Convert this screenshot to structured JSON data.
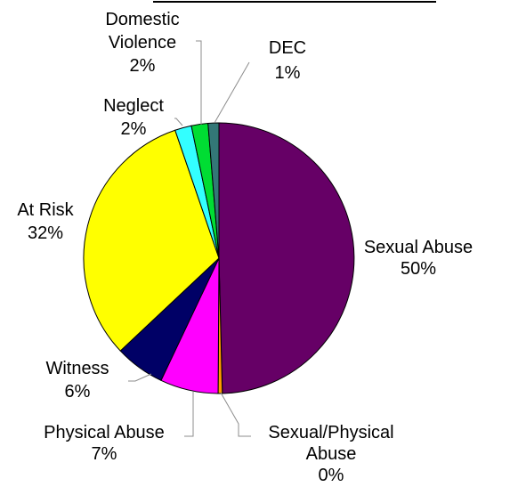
{
  "chart_data": {
    "type": "pie",
    "title": "",
    "start_angle_deg": 0,
    "direction": "clockwise",
    "slices": [
      {
        "name": "Sexual Abuse",
        "value": 50,
        "label": "50%",
        "color": "#660066"
      },
      {
        "name": "Sexual/Physical Abuse",
        "value": 0.5,
        "label": "0%",
        "color": "#FF9900"
      },
      {
        "name": "Physical Abuse",
        "value": 7,
        "label": "7%",
        "color": "#FF00FF"
      },
      {
        "name": "Witness",
        "value": 6,
        "label": "6%",
        "color": "#000066"
      },
      {
        "name": "At Risk",
        "value": 32,
        "label": "32%",
        "color": "#FFFF00"
      },
      {
        "name": "Neglect",
        "value": 2,
        "label": "2%",
        "color": "#33FFFF"
      },
      {
        "name": "Domestic Violence",
        "value": 2,
        "label": "2%",
        "color": "#00DD33"
      },
      {
        "name": "DEC",
        "value": 1.3,
        "label": "1%",
        "color": "#337777"
      }
    ],
    "legend": "none",
    "label_lines": [
      [
        "Sexual Abuse",
        "50%"
      ],
      [
        "Sexual/Physical",
        "Abuse",
        "0%"
      ],
      [
        "Physical Abuse",
        "7%"
      ],
      [
        "Witness",
        "6%"
      ],
      [
        "At Risk",
        "32%"
      ],
      [
        "Neglect",
        "2%"
      ],
      [
        "Domestic",
        "Violence",
        "2%"
      ],
      [
        "DEC",
        "1%"
      ]
    ]
  }
}
